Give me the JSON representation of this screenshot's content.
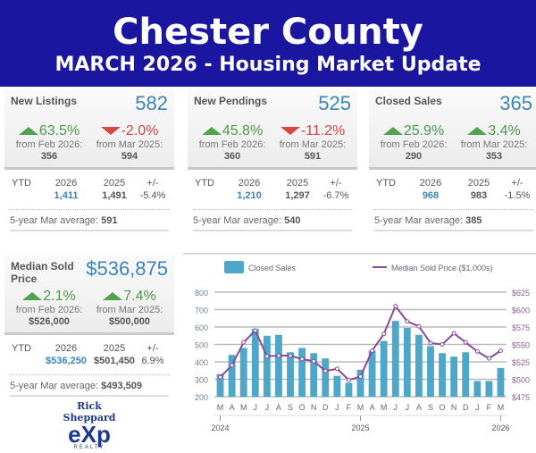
{
  "header": {
    "title": "Chester County",
    "subtitle": "MARCH 2026 - Housing Market Update"
  },
  "panels": [
    {
      "title": "New Listings",
      "value": "582",
      "changes": [
        {
          "dir": "up",
          "pct": "63.5%",
          "label": "from Feb 2026:",
          "num": "356"
        },
        {
          "dir": "down",
          "pct": "-2.0%",
          "label": "from Mar 2025:",
          "num": "594"
        }
      ],
      "ytd": {
        "label": "YTD",
        "y1": "2026",
        "v1": "1,411",
        "y2": "2025",
        "v2": "1,491",
        "diff_label": "+/-",
        "diff": "-5.4%"
      },
      "avg_label": "5-year Mar average:",
      "avg": "591"
    },
    {
      "title": "New Pendings",
      "value": "525",
      "changes": [
        {
          "dir": "up",
          "pct": "45.8%",
          "label": "from Feb 2026:",
          "num": "360"
        },
        {
          "dir": "down",
          "pct": "-11.2%",
          "label": "from Mar 2025:",
          "num": "591"
        }
      ],
      "ytd": {
        "label": "YTD",
        "y1": "2026",
        "v1": "1,210",
        "y2": "2025",
        "v2": "1,297",
        "diff_label": "+/-",
        "diff": "-6.7%"
      },
      "avg_label": "5-year Mar average:",
      "avg": "540"
    },
    {
      "title": "Closed Sales",
      "value": "365",
      "changes": [
        {
          "dir": "up",
          "pct": "25.9%",
          "label": "from Feb 2026:",
          "num": "290"
        },
        {
          "dir": "up",
          "pct": "3.4%",
          "label": "from Mar 2025:",
          "num": "353"
        }
      ],
      "ytd": {
        "label": "YTD",
        "y1": "2026",
        "v1": "968",
        "y2": "2025",
        "v2": "983",
        "diff_label": "+/-",
        "diff": "-1.5%"
      },
      "avg_label": "5-year Mar average:",
      "avg": "385"
    },
    {
      "title": "Median Sold Price",
      "value": "$536,875",
      "changes": [
        {
          "dir": "up",
          "pct": "2.1%",
          "label": "from Feb 2026:",
          "num": "$526,000"
        },
        {
          "dir": "up",
          "pct": "7.4%",
          "label": "from Mar 2025:",
          "num": "$500,000"
        }
      ],
      "ytd": {
        "label": "YTD",
        "y1": "2026",
        "v1": "$536,250",
        "y2": "2025",
        "v2": "$501,450",
        "diff_label": "+/-",
        "diff": "6.9%"
      },
      "avg_label": "5-year Mar average:",
      "avg": "$493,509"
    }
  ],
  "logo": {
    "name": "Rick Sheppard",
    "brand": "eXp",
    "sub": "REALTY"
  },
  "chart_data": {
    "type": "bar+line",
    "categories": [
      "M",
      "A",
      "M",
      "J",
      "J",
      "A",
      "S",
      "O",
      "N",
      "D",
      "J",
      "F",
      "M",
      "A",
      "M",
      "J",
      "J",
      "A",
      "S",
      "O",
      "N",
      "D",
      "J",
      "F",
      "M"
    ],
    "year_labels": [
      "2024",
      "2025",
      "2026"
    ],
    "series": [
      {
        "name": "Closed Sales",
        "type": "bar",
        "axis": "left",
        "color": "#4ea7c9",
        "values": [
          330,
          440,
          480,
          590,
          550,
          555,
          455,
          480,
          450,
          420,
          320,
          280,
          355,
          465,
          520,
          635,
          595,
          555,
          490,
          450,
          430,
          455,
          290,
          290,
          365
        ]
      },
      {
        "name": "Median Sold Price ($1,000s)",
        "type": "line",
        "axis": "right",
        "color": "#8a4a9a",
        "values": [
          503,
          520,
          553,
          570,
          533,
          534,
          534,
          529,
          526,
          512,
          515,
          499,
          504,
          541,
          565,
          605,
          583,
          576,
          552,
          550,
          566,
          553,
          540,
          530,
          541
        ]
      }
    ],
    "ylim_left": [
      200,
      800
    ],
    "yticks_left": [
      "800",
      "700",
      "600",
      "500",
      "400",
      "300",
      "200"
    ],
    "ylim_right": [
      475,
      625
    ],
    "yticks_right": [
      "$625",
      "$600",
      "$575",
      "$550",
      "$525",
      "$500",
      "$475"
    ],
    "grid": true,
    "legend": "top"
  }
}
